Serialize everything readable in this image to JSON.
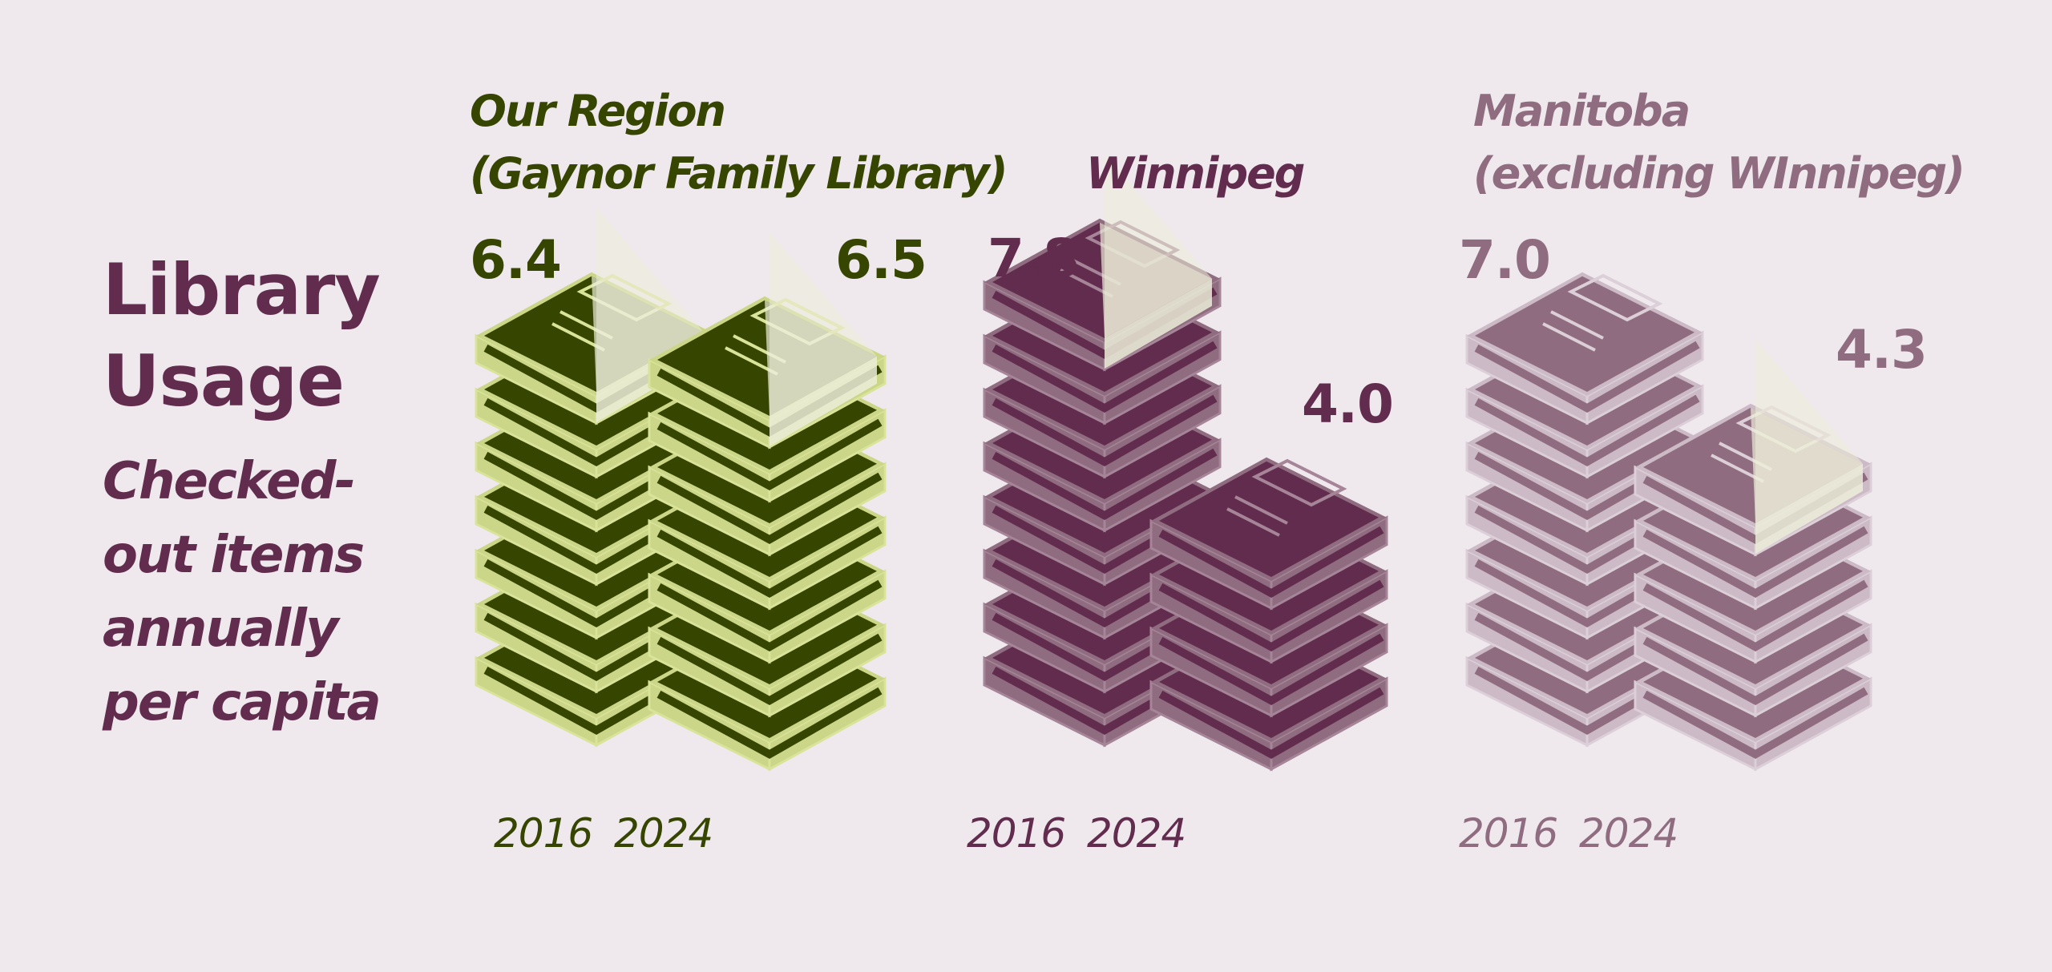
{
  "heading": {
    "title_line1": "Library",
    "title_line2": "Usage",
    "subtitle_lines": [
      "Checked-",
      "out items",
      "annually",
      "per capita"
    ]
  },
  "colors": {
    "background": "#efe9ee",
    "green_dark": "#364600",
    "green_light": "#cbd688",
    "plum_dark": "#612c4d",
    "plum_mid": "#8f6c7f",
    "mauve_light": "#ccbac6",
    "book_cover": "#ecedd8"
  },
  "chart_data": {
    "type": "bar",
    "title": "Library Usage",
    "subtitle": "Checked-out items annually per capita",
    "categories": [
      "2016",
      "2024"
    ],
    "panels": [
      {
        "region_lines": [
          "Our Region",
          "(Gaynor Family Library)"
        ],
        "categories": [
          "2016",
          "2024"
        ],
        "values": [
          6.4,
          6.5
        ],
        "value_labels": [
          "6.4",
          "6.5"
        ],
        "year_labels": [
          "2016",
          "2024"
        ],
        "color": "#364600"
      },
      {
        "region_lines": [
          "Winnipeg"
        ],
        "categories": [
          "2016",
          "2024"
        ],
        "values": [
          7.8,
          4.0
        ],
        "value_labels": [
          "7.8",
          "4.0"
        ],
        "year_labels": [
          "2016",
          "2024"
        ],
        "color": "#612c4d"
      },
      {
        "region_lines": [
          "Manitoba",
          "(excluding WInnipeg)"
        ],
        "categories": [
          "2016",
          "2024"
        ],
        "values": [
          7.0,
          4.3
        ],
        "value_labels": [
          "7.0",
          "4.3"
        ],
        "year_labels": [
          "2016",
          "2024"
        ],
        "color": "#8f6c7f"
      }
    ]
  }
}
